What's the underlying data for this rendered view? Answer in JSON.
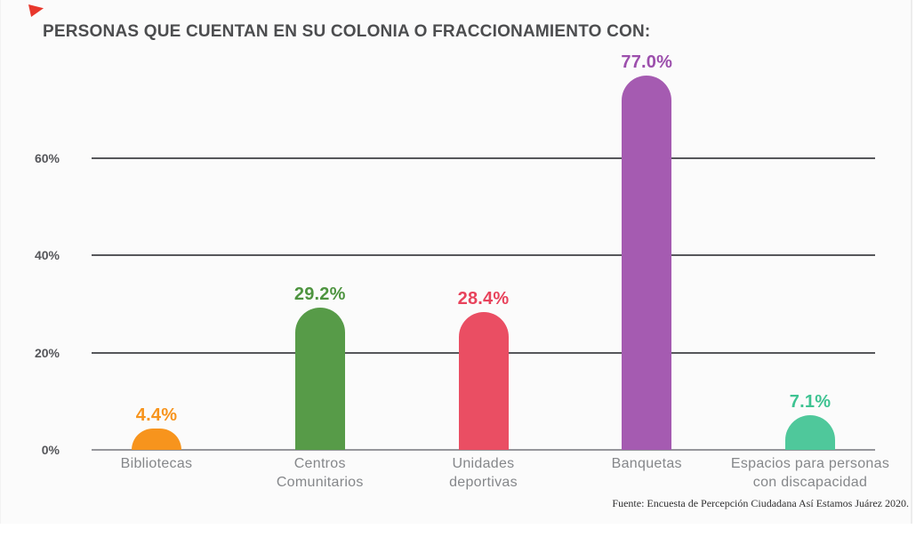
{
  "decorations": {
    "red_triangle_color": "#E8372C"
  },
  "chart_data": {
    "type": "bar",
    "title": "PERSONAS QUE CUENTAN EN SU COLONIA O FRACCIONAMIENTO CON:",
    "categories": [
      "Bibliotecas",
      "Centros Comunitarios",
      "Unidades deportivas",
      "Banquetas",
      "Espacios para personas con discapacidad"
    ],
    "category_label_lines": [
      [
        "Bibliotecas"
      ],
      [
        "Centros",
        "Comunitarios"
      ],
      [
        "Unidades",
        "deportivas"
      ],
      [
        "Banquetas"
      ],
      [
        "Espacios para personas",
        "con discapacidad"
      ]
    ],
    "values": [
      4.4,
      29.2,
      28.4,
      77.0,
      7.1
    ],
    "value_labels": [
      "4.4%",
      "29.2%",
      "28.4%",
      "77.0%",
      "7.1%"
    ],
    "bar_colors": [
      "#F7941D",
      "#579B48",
      "#EA4E63",
      "#A55BB1",
      "#4FC89B"
    ],
    "value_label_colors": [
      "#F7941D",
      "#4E9440",
      "#E8435C",
      "#9C4FAC",
      "#3EC392"
    ],
    "yticks": [
      "0%",
      "20%",
      "40%",
      "60%"
    ],
    "ytick_values": [
      0,
      20,
      40,
      60
    ],
    "ylim": [
      0,
      80
    ],
    "xlabel": "",
    "ylabel": "",
    "grid": true,
    "legend": false,
    "gridline_color": "#56575b",
    "text_gray": "#85878a",
    "title_color": "#4c4d4f",
    "source": "Fuente: Encuesta de Percepción Ciudadana Así Estamos Juárez 2020."
  }
}
